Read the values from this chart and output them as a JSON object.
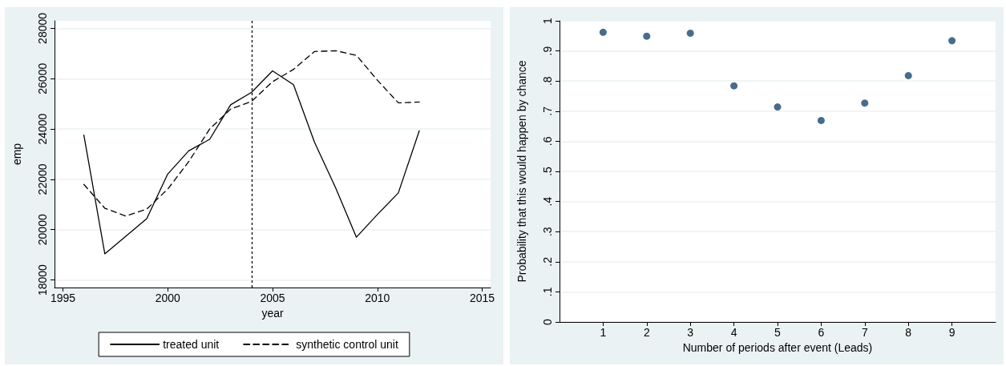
{
  "chart_data": [
    {
      "type": "line",
      "xlabel": "year",
      "ylabel": "emp",
      "x": [
        1996,
        1997,
        1998,
        1999,
        2000,
        2001,
        2002,
        2003,
        2004,
        2005,
        2006,
        2007,
        2008,
        2009,
        2010,
        2011,
        2012
      ],
      "series": [
        {
          "name": "treated unit",
          "color": "#000000",
          "line_style": "solid",
          "values": [
            23760,
            19040,
            19740,
            20440,
            22210,
            23130,
            23590,
            24960,
            25460,
            26310,
            25760,
            23480,
            21680,
            19700,
            20600,
            21460,
            23930
          ]
        },
        {
          "name": "synthetic control unit",
          "color": "#000000",
          "line_style": "dashed",
          "values": [
            21800,
            20850,
            20540,
            20820,
            21610,
            22700,
            24000,
            24790,
            25100,
            25880,
            26370,
            27080,
            27110,
            26930,
            25940,
            25040,
            25070
          ]
        }
      ],
      "xlim": [
        1994.6,
        2015.4
      ],
      "xticks": [
        1995,
        2000,
        2005,
        2010,
        2015
      ],
      "ylim": [
        17700,
        28300
      ],
      "yticks": [
        18000,
        20000,
        22000,
        24000,
        26000,
        28000
      ],
      "ref_lines": [
        {
          "axis": "x",
          "value": 2004,
          "label": null,
          "color": "#000000",
          "line_style": "dotted"
        }
      ],
      "grid": "y",
      "legend": "bottom",
      "marker": "none"
    },
    {
      "type": "scatter",
      "xlabel": "Number of periods after event (Leads)",
      "ylabel": "Probability that this would happen by chance",
      "x": [
        1,
        2,
        3,
        4,
        5,
        6,
        7,
        8,
        9
      ],
      "series": [
        {
          "color": "#1a476f",
          "values": [
            0.962,
            0.949,
            0.959,
            0.784,
            0.714,
            0.669,
            0.727,
            0.818,
            0.934
          ]
        }
      ],
      "xlim": [
        0,
        10
      ],
      "xticks": [
        1,
        2,
        3,
        4,
        5,
        6,
        7,
        8,
        9
      ],
      "ylim": [
        0,
        1
      ],
      "yticks": [
        0,
        {
          "value": 0.1,
          "label": ".1"
        },
        {
          "value": 0.2,
          "label": ".2"
        },
        {
          "value": 0.3,
          "label": ".3"
        },
        {
          "value": 0.4,
          "label": ".4"
        },
        {
          "value": 0.5,
          "label": ".5"
        },
        {
          "value": 0.6,
          "label": ".6"
        },
        {
          "value": 0.7,
          "label": ".7"
        },
        {
          "value": 0.8,
          "label": ".8"
        },
        {
          "value": 0.9,
          "label": ".9"
        },
        1
      ],
      "grid": "y",
      "legend": false,
      "marker": "circle"
    }
  ]
}
